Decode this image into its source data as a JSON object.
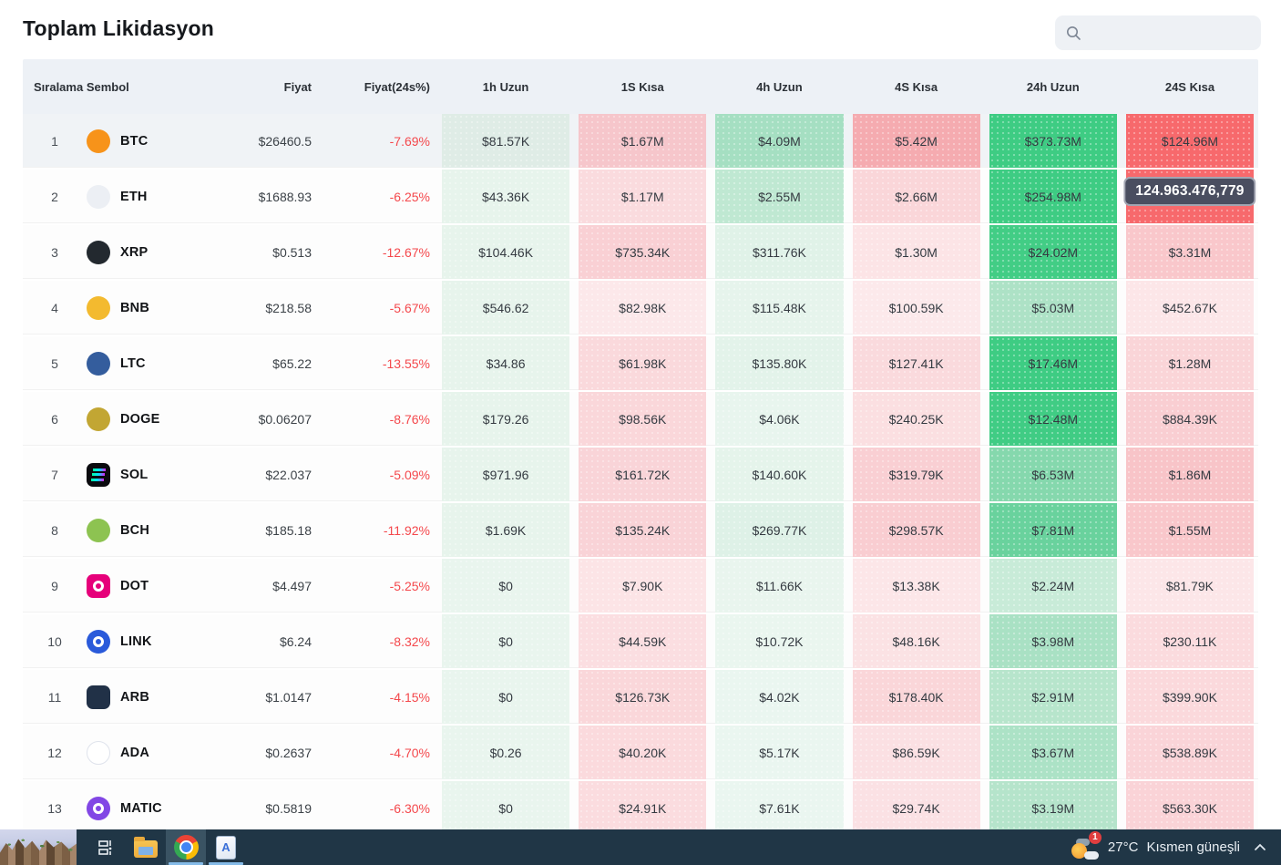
{
  "title": "Toplam Likidasyon",
  "search": {
    "placeholder": ""
  },
  "tooltip_text": "124.963.476,779",
  "table": {
    "headers": [
      "Sıralama Sembol",
      "Fiyat",
      "Fiyat(24s%)",
      "1h Uzun",
      "1S Kısa",
      "4h Uzun",
      "4S Kısa",
      "24h Uzun",
      "24S Kısa"
    ],
    "col_keys": [
      "1h-uzun",
      "1s-kisa",
      "4h-uzun",
      "4s-kisa",
      "24h-uzun",
      "24s-kisa"
    ],
    "accent_colors": {
      "strong_green": "#3ecc83",
      "strong_red": "#f7696c",
      "negative_text": "#f4484c"
    },
    "rows": [
      {
        "rank": "1",
        "symbol": "BTC",
        "highlighted": true,
        "icon": {
          "shape": "circle",
          "bg": "#f7931a",
          "fg": "#ffffff",
          "type": "glyph",
          "glyph": "฿"
        },
        "price": "$26460.5",
        "change": "-7.69%",
        "cells": [
          {
            "text": "$81.57K",
            "bg": "#dfece6"
          },
          {
            "text": "$1.67M",
            "bg": "#f6c6cb"
          },
          {
            "text": "$4.09M",
            "bg": "#a5dfc2"
          },
          {
            "text": "$5.42M",
            "bg": "#f5abb0"
          },
          {
            "text": "$373.73M",
            "bg": "#3ecc83"
          },
          {
            "text": "$124.96M",
            "bg": "#f7696c"
          }
        ]
      },
      {
        "rank": "2",
        "symbol": "ETH",
        "highlighted": false,
        "icon": {
          "shape": "circle",
          "bg": "#eceff4",
          "fg": "#454b57",
          "type": "glyph",
          "glyph": "◆"
        },
        "price": "$1688.93",
        "change": "-6.25%",
        "cells": [
          {
            "text": "$43.36K",
            "bg": "#e7f4ec"
          },
          {
            "text": "$1.17M",
            "bg": "#fadbde"
          },
          {
            "text": "$2.55M",
            "bg": "#bfe8d2"
          },
          {
            "text": "$2.66M",
            "bg": "#fad6d9"
          },
          {
            "text": "$254.98M",
            "bg": "#3ecc83"
          },
          {
            "text": "",
            "bg": "#f7696c",
            "tooltip": "124.963.476,779"
          }
        ]
      },
      {
        "rank": "3",
        "symbol": "XRP",
        "highlighted": false,
        "icon": {
          "shape": "circle",
          "bg": "#23292f",
          "fg": "#ffffff",
          "type": "glyph",
          "glyph": "X"
        },
        "price": "$0.513",
        "change": "-12.67%",
        "cells": [
          {
            "text": "$104.46K",
            "bg": "#e7f4ec"
          },
          {
            "text": "$735.34K",
            "bg": "#f9d0d4"
          },
          {
            "text": "$311.76K",
            "bg": "#e0f2e8"
          },
          {
            "text": "$1.30M",
            "bg": "#fce4e6"
          },
          {
            "text": "$24.02M",
            "bg": "#42cd85"
          },
          {
            "text": "$3.31M",
            "bg": "#f9c7cb"
          }
        ]
      },
      {
        "rank": "4",
        "symbol": "BNB",
        "highlighted": false,
        "icon": {
          "shape": "circle",
          "bg": "#f3ba2f",
          "fg": "#ffffff",
          "type": "glyph",
          "glyph": "◆"
        },
        "price": "$218.58",
        "change": "-5.67%",
        "cells": [
          {
            "text": "$546.62",
            "bg": "#e7f4ec"
          },
          {
            "text": "$82.98K",
            "bg": "#fce8ea"
          },
          {
            "text": "$115.48K",
            "bg": "#e6f4ec"
          },
          {
            "text": "$100.59K",
            "bg": "#fce9eb"
          },
          {
            "text": "$5.03M",
            "bg": "#ade2c6"
          },
          {
            "text": "$452.67K",
            "bg": "#fce6e8"
          }
        ]
      },
      {
        "rank": "5",
        "symbol": "LTC",
        "highlighted": false,
        "icon": {
          "shape": "circle",
          "bg": "#345d9d",
          "fg": "#ffffff",
          "type": "glyph",
          "glyph": "Ł"
        },
        "price": "$65.22",
        "change": "-13.55%",
        "cells": [
          {
            "text": "$34.86",
            "bg": "#e7f4ec"
          },
          {
            "text": "$61.98K",
            "bg": "#fad9dc"
          },
          {
            "text": "$135.80K",
            "bg": "#e3f3ea"
          },
          {
            "text": "$127.41K",
            "bg": "#fadadd"
          },
          {
            "text": "$17.46M",
            "bg": "#3ecc83"
          },
          {
            "text": "$1.28M",
            "bg": "#fad5d8"
          }
        ]
      },
      {
        "rank": "6",
        "symbol": "DOGE",
        "highlighted": false,
        "icon": {
          "shape": "circle",
          "bg": "#c2a633",
          "fg": "#fdf3cf",
          "type": "glyph",
          "glyph": "Ð"
        },
        "price": "$0.06207",
        "change": "-8.76%",
        "cells": [
          {
            "text": "$179.26",
            "bg": "#e7f4ec"
          },
          {
            "text": "$98.56K",
            "bg": "#fad7da"
          },
          {
            "text": "$4.06K",
            "bg": "#e8f5ee"
          },
          {
            "text": "$240.25K",
            "bg": "#fbdfe1"
          },
          {
            "text": "$12.48M",
            "bg": "#40cc84"
          },
          {
            "text": "$884.39K",
            "bg": "#f9ced2"
          }
        ]
      },
      {
        "rank": "7",
        "symbol": "SOL",
        "highlighted": false,
        "icon": {
          "shape": "square",
          "bg": "#0b0b0f",
          "fg": "#ffffff",
          "type": "bars"
        },
        "price": "$22.037",
        "change": "-5.09%",
        "cells": [
          {
            "text": "$971.96",
            "bg": "#e7f4ec"
          },
          {
            "text": "$161.72K",
            "bg": "#f9d4d8"
          },
          {
            "text": "$140.60K",
            "bg": "#e5f4eb"
          },
          {
            "text": "$319.79K",
            "bg": "#f9cfd3"
          },
          {
            "text": "$6.53M",
            "bg": "#85d8ad"
          },
          {
            "text": "$1.86M",
            "bg": "#f8c4c8"
          }
        ]
      },
      {
        "rank": "8",
        "symbol": "BCH",
        "highlighted": false,
        "icon": {
          "shape": "circle",
          "bg": "#8dc351",
          "fg": "#ffffff",
          "type": "glyph",
          "glyph": "฿"
        },
        "price": "$185.18",
        "change": "-11.92%",
        "cells": [
          {
            "text": "$1.69K",
            "bg": "#e7f4ec"
          },
          {
            "text": "$135.24K",
            "bg": "#f9d3d7"
          },
          {
            "text": "$269.77K",
            "bg": "#def1e7"
          },
          {
            "text": "$298.57K",
            "bg": "#f9cdd1"
          },
          {
            "text": "$7.81M",
            "bg": "#69d29d"
          },
          {
            "text": "$1.55M",
            "bg": "#f9c7cb"
          }
        ]
      },
      {
        "rank": "9",
        "symbol": "DOT",
        "highlighted": false,
        "icon": {
          "shape": "square",
          "bg": "#e6007a",
          "fg": "#ffffff",
          "type": "ring"
        },
        "price": "$4.497",
        "change": "-5.25%",
        "cells": [
          {
            "text": "$0",
            "bg": "#e9f5ee"
          },
          {
            "text": "$7.90K",
            "bg": "#fce4e6"
          },
          {
            "text": "$11.66K",
            "bg": "#e9f5ee"
          },
          {
            "text": "$13.38K",
            "bg": "#fce6e8"
          },
          {
            "text": "$2.24M",
            "bg": "#c8ebd8"
          },
          {
            "text": "$81.79K",
            "bg": "#fce6e8"
          }
        ]
      },
      {
        "rank": "10",
        "symbol": "LINK",
        "highlighted": false,
        "icon": {
          "shape": "circle",
          "bg": "#2a5ada",
          "fg": "#ffffff",
          "type": "ring"
        },
        "price": "$6.24",
        "change": "-8.32%",
        "cells": [
          {
            "text": "$0",
            "bg": "#e9f5ee"
          },
          {
            "text": "$44.59K",
            "bg": "#fbdee1"
          },
          {
            "text": "$10.72K",
            "bg": "#eaf6ef"
          },
          {
            "text": "$48.16K",
            "bg": "#fbe2e4"
          },
          {
            "text": "$3.98M",
            "bg": "#a9e1c4"
          },
          {
            "text": "$230.11K",
            "bg": "#fbdbde"
          }
        ]
      },
      {
        "rank": "11",
        "symbol": "ARB",
        "highlighted": false,
        "icon": {
          "shape": "square",
          "bg": "#213147",
          "fg": "#7fc4f2",
          "type": "glyph",
          "glyph": "▲"
        },
        "price": "$1.0147",
        "change": "-4.15%",
        "cells": [
          {
            "text": "$0",
            "bg": "#e9f5ee"
          },
          {
            "text": "$126.73K",
            "bg": "#fad7da"
          },
          {
            "text": "$4.02K",
            "bg": "#eaf6f0"
          },
          {
            "text": "$178.40K",
            "bg": "#fad6d9"
          },
          {
            "text": "$2.91M",
            "bg": "#b7e5cc"
          },
          {
            "text": "$399.90K",
            "bg": "#fbd9dc"
          }
        ]
      },
      {
        "rank": "12",
        "symbol": "ADA",
        "highlighted": false,
        "icon": {
          "shape": "circle",
          "bg": "#ffffff",
          "fg": "#0d33ad",
          "type": "glyph",
          "glyph": "∗",
          "border": "#dfe3ec"
        },
        "price": "$0.2637",
        "change": "-4.70%",
        "cells": [
          {
            "text": "$0.26",
            "bg": "#e9f5ee"
          },
          {
            "text": "$40.20K",
            "bg": "#fbdadd"
          },
          {
            "text": "$5.17K",
            "bg": "#eaf6f0"
          },
          {
            "text": "$86.59K",
            "bg": "#fbe0e3"
          },
          {
            "text": "$3.67M",
            "bg": "#ace2c6"
          },
          {
            "text": "$538.89K",
            "bg": "#fad4d8"
          }
        ]
      },
      {
        "rank": "13",
        "symbol": "MATIC",
        "highlighted": false,
        "icon": {
          "shape": "circle",
          "bg": "#8247e5",
          "fg": "#ffffff",
          "type": "ring"
        },
        "price": "$0.5819",
        "change": "-6.30%",
        "cells": [
          {
            "text": "$0",
            "bg": "#e9f5ee"
          },
          {
            "text": "$24.91K",
            "bg": "#fbdcdf"
          },
          {
            "text": "$7.61K",
            "bg": "#eaf6f0"
          },
          {
            "text": "$29.74K",
            "bg": "#fbe1e4"
          },
          {
            "text": "$3.19M",
            "bg": "#b5e4cb"
          },
          {
            "text": "$563.30K",
            "bg": "#fad3d7"
          }
        ]
      }
    ]
  },
  "taskbar": {
    "temperature": "27°C",
    "condition": "Kısmen güneşli",
    "notification_count": "1"
  }
}
